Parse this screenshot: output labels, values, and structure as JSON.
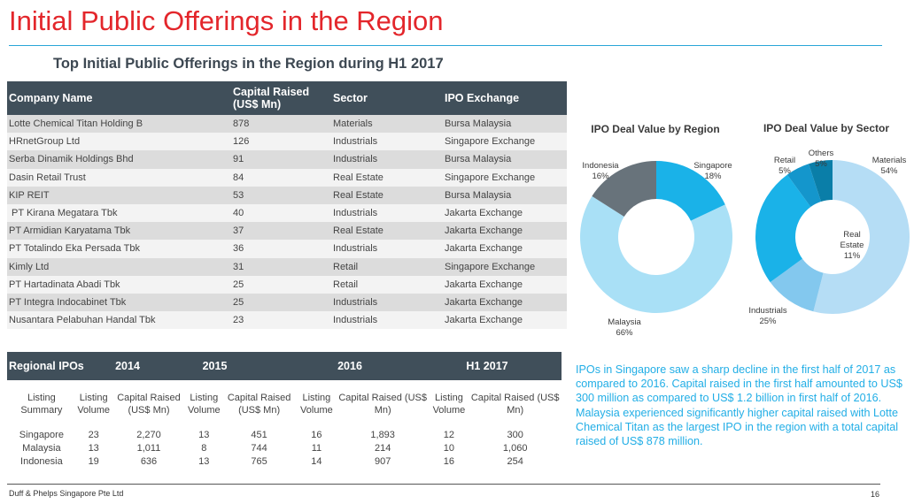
{
  "title": "Initial Public Offerings in the Region",
  "subtitle": "Top Initial Public Offerings in the Region during H1 2017",
  "top_table": {
    "headers": [
      "Company Name",
      "Capital Raised (US$ Mn)",
      "Sector",
      "IPO Exchange"
    ],
    "rows": [
      [
        "Lotte Chemical Titan Holding B",
        "878",
        "Materials",
        "Bursa Malaysia"
      ],
      [
        "HRnetGroup Ltd",
        "126",
        "Industrials",
        "Singapore Exchange"
      ],
      [
        "Serba Dinamik Holdings Bhd",
        "91",
        "Industrials",
        "Bursa Malaysia"
      ],
      [
        "Dasin Retail Trust",
        "84",
        "Real Estate",
        "Singapore Exchange"
      ],
      [
        "KIP REIT",
        "53",
        "Real Estate",
        "Bursa Malaysia"
      ],
      [
        " PT Kirana Megatara Tbk",
        "40",
        "Industrials",
        "Jakarta Exchange"
      ],
      [
        "PT Armidian Karyatama Tbk",
        "37",
        "Real Estate",
        "Jakarta Exchange"
      ],
      [
        "PT Totalindo Eka Persada Tbk",
        "36",
        "Industrials",
        "Jakarta Exchange"
      ],
      [
        "Kimly Ltd",
        "31",
        "Retail",
        "Singapore Exchange"
      ],
      [
        "PT Hartadinata Abadi Tbk",
        "25",
        "Retail",
        "Jakarta Exchange"
      ],
      [
        "PT Integra Indocabinet Tbk",
        "25",
        "Industrials",
        "Jakarta Exchange"
      ],
      [
        "Nusantara Pelabuhan Handal Tbk",
        "23",
        "Industrials",
        "Jakarta Exchange"
      ]
    ]
  },
  "regional": {
    "header": [
      "Regional IPOs",
      "2014",
      "2015",
      "2016",
      "H1 2017"
    ],
    "sub": [
      "Listing Summary",
      "Listing Volume",
      "Capital Raised (US$ Mn)",
      "Listing Volume",
      "Capital Raised (US$ Mn)",
      "Listing Volume",
      "Capital Raised (US$ Mn)",
      "Listing Volume",
      "Capital Raised (US$ Mn)"
    ],
    "rows": [
      [
        "Singapore",
        "23",
        "2,270",
        "13",
        "451",
        "16",
        "1,893",
        "12",
        "300"
      ],
      [
        "Malaysia",
        "13",
        "1,011",
        "8",
        "744",
        "11",
        "214",
        "10",
        "1,060"
      ],
      [
        "Indonesia",
        "19",
        "636",
        "13",
        "765",
        "14",
        "907",
        "16",
        "254"
      ]
    ]
  },
  "commentary": "IPOs in Singapore saw a sharp decline in the first half of 2017 as compared to 2016. Capital raised in the first half amounted to US$ 300 million as compared to US$ 1.2 billion in first half of 2016. Malaysia experienced significantly higher capital raised with Lotte Chemical Titan as the largest IPO in the region with a total capital raised of US$ 878 million.",
  "footer": "Duff & Phelps Singapore Pte Ltd",
  "page_number": "16",
  "chart_data": [
    {
      "type": "pie",
      "donut": true,
      "title": "IPO Deal Value by Region",
      "slices": [
        {
          "label": "Singapore",
          "value": 18,
          "display": "18%",
          "color": "#1ab2e8"
        },
        {
          "label": "Malaysia",
          "value": 66,
          "display": "66%",
          "color": "#a9e0f6"
        },
        {
          "label": "Indonesia",
          "value": 16,
          "display": "16%",
          "color": "#68737b"
        }
      ]
    },
    {
      "type": "pie",
      "donut": true,
      "title": "IPO Deal Value by Sector",
      "slices": [
        {
          "label": "Materials",
          "value": 54,
          "display": "54%",
          "color": "#b5ddf5"
        },
        {
          "label": "Real Estate",
          "value": 11,
          "display": "11%",
          "color": "#83c8ee"
        },
        {
          "label": "Industrials",
          "value": 25,
          "display": "25%",
          "color": "#1ab2e8"
        },
        {
          "label": "Retail",
          "value": 5,
          "display": "5%",
          "color": "#1496cc"
        },
        {
          "label": "Others",
          "value": 5,
          "display": "5%",
          "color": "#0a7ea8"
        }
      ]
    }
  ]
}
